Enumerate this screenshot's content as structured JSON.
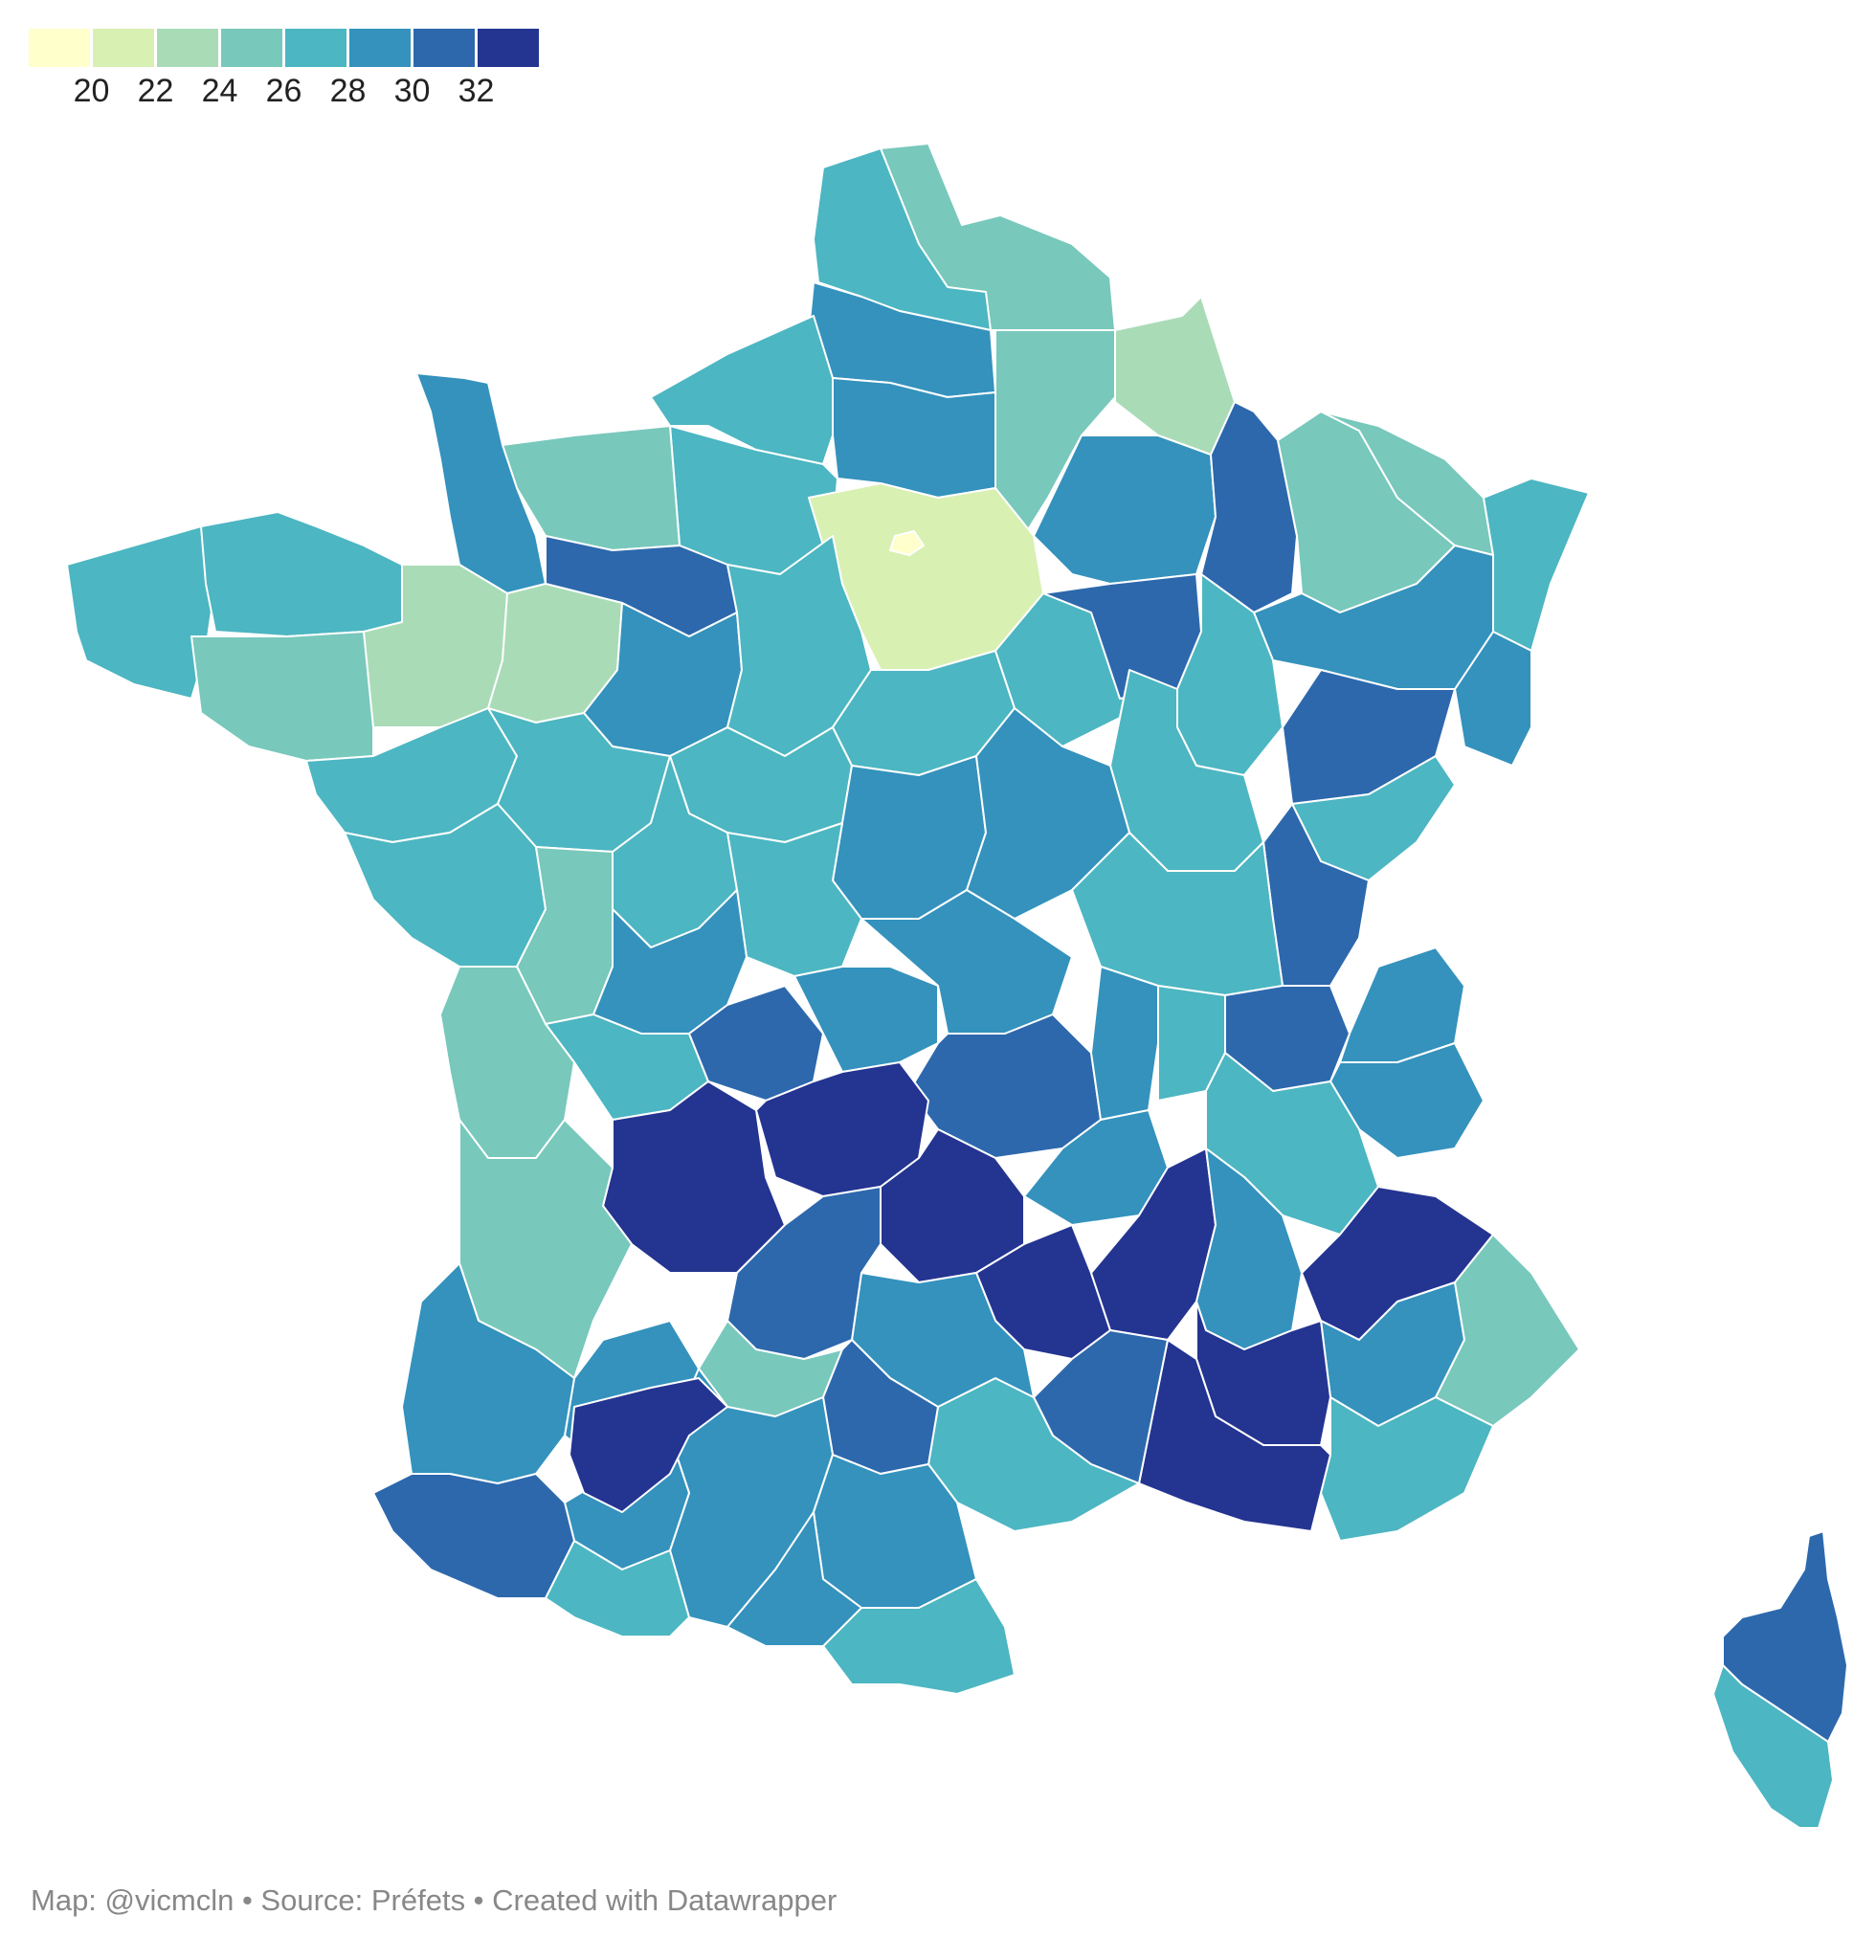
{
  "legend": {
    "colors": [
      "#ffffcc",
      "#d9f0b3",
      "#a9dbb7",
      "#78c8bc",
      "#4cb6c2",
      "#3492bd",
      "#2d68ad",
      "#243491"
    ],
    "labels": [
      "20",
      "22",
      "24",
      "26",
      "28",
      "30",
      "32"
    ]
  },
  "map": {
    "colors": {
      "c20": "#ffffcc",
      "c22": "#d9f0b3",
      "c24": "#a9dbb7",
      "c26": "#78c8bc",
      "c28": "#4cb6c2",
      "c30": "#3492bd",
      "c32": "#2d68ad",
      "c34": "#243491"
    }
  },
  "footer": {
    "text": "Map: @vicmcln • Source: Préfets • Created with Datawrapper"
  }
}
